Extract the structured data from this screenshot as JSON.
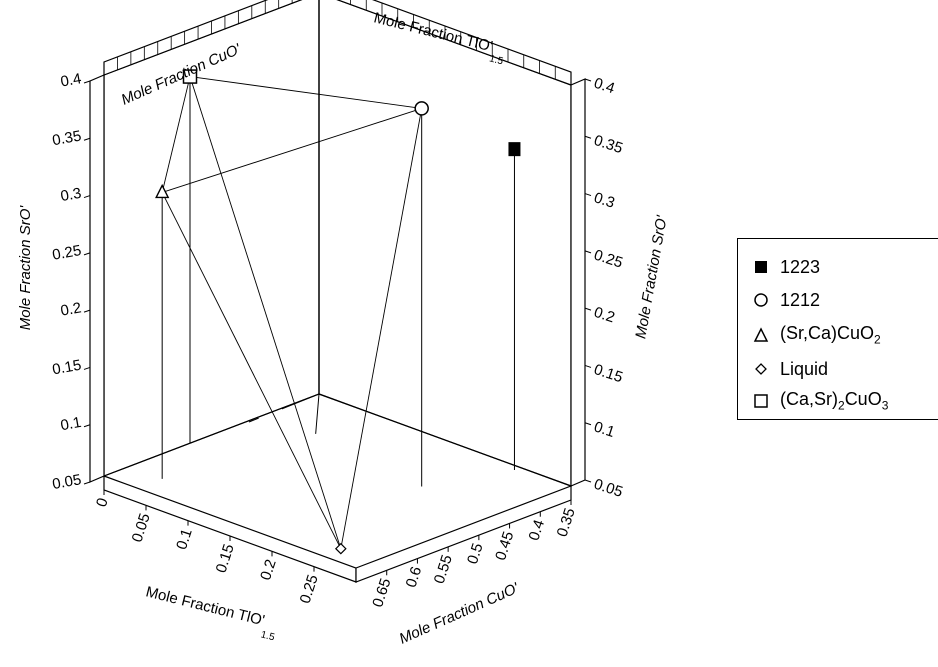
{
  "chart_data": {
    "type": "scatter",
    "projection": "3d-box",
    "axes": {
      "x": {
        "label": "Mole Fraction TlO'",
        "label_sub": "1.5",
        "range": [
          0,
          0.3
        ],
        "ticks": [
          "0",
          "0.05",
          "0.1",
          "0.15",
          "0.2",
          "0.25"
        ]
      },
      "y": {
        "label": "Mole Fraction CuO'",
        "range": [
          0.35,
          0.7
        ],
        "ticks": [
          "0.35",
          "0.4",
          "0.45",
          "0.5",
          "0.55",
          "0.6",
          "0.65"
        ]
      },
      "z": {
        "label": "Mole Fraction SrO'",
        "range": [
          0.05,
          0.4
        ],
        "ticks": [
          "0.05",
          "0.1",
          "0.15",
          "0.2",
          "0.25",
          "0.3",
          "0.35",
          "0.4"
        ]
      }
    },
    "back_labels": {
      "top_left": "Mole Fraction CuO'",
      "top_right": "Mole Fraction TlO'",
      "top_right_sub": "1.5"
    },
    "series": [
      {
        "name": "1223",
        "marker": "filled-square",
        "points": [
          {
            "x": 0.24,
            "y": 0.36,
            "z": 0.33
          }
        ]
      },
      {
        "name": "1212",
        "marker": "circle",
        "points": [
          {
            "x": 0.21,
            "y": 0.47,
            "z": 0.38
          }
        ]
      },
      {
        "name": "(Sr,Ca)CuO",
        "name_sub": "2",
        "marker": "triangle",
        "points": [
          {
            "x": 0.04,
            "y": 0.66,
            "z": 0.3
          }
        ]
      },
      {
        "name": "Liquid",
        "marker": "diamond",
        "points": [
          {
            "x": 0.26,
            "y": 0.67,
            "z": 0.05
          }
        ]
      },
      {
        "name": "(Ca,Sr)",
        "name_sub": "2",
        "name_tail": "CuO",
        "name_tail_sub": "3",
        "marker": "open-square",
        "points": [
          {
            "x": 0.0,
            "y": 0.56,
            "z": 0.37
          }
        ]
      }
    ],
    "tie_lines": [
      [
        "(Ca,Sr)2CuO3",
        "1212"
      ],
      [
        "(Sr,Ca)CuO2",
        "1212"
      ],
      [
        "(Sr,Ca)CuO2",
        "(Ca,Sr)2CuO3"
      ],
      [
        "(Sr,Ca)CuO2",
        "Liquid"
      ],
      [
        "(Ca,Sr)2CuO3",
        "Liquid"
      ],
      [
        "1212",
        "Liquid"
      ]
    ],
    "legend": {
      "position": "right"
    }
  }
}
